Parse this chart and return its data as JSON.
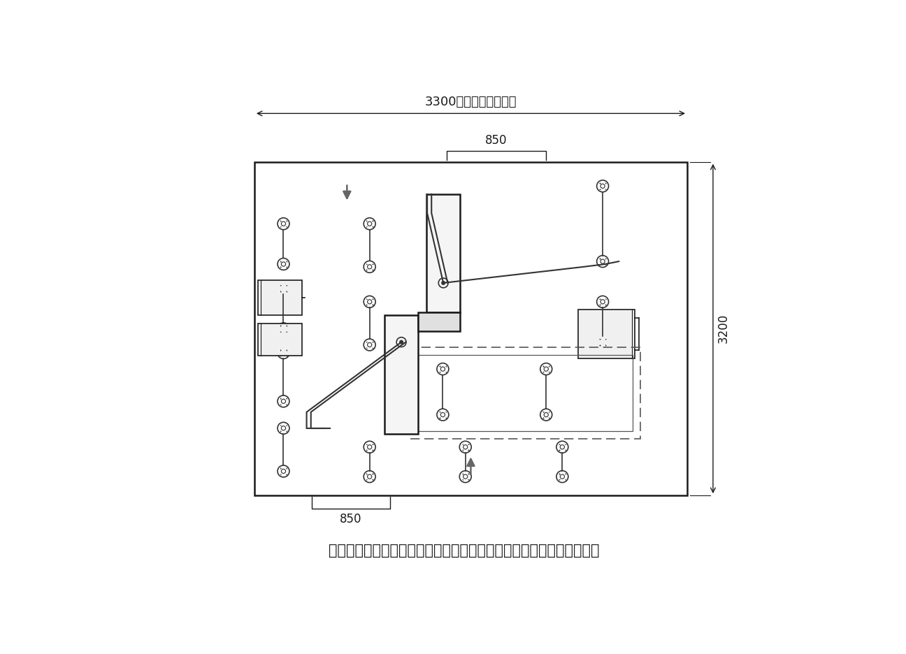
{
  "bottom_text": "製品図面データご希望の方は下記お問合せフォームよりご連絡下さい",
  "dim_top": "3300（土間コン範囲）",
  "dim_right": "3200",
  "dim_850_top": "850",
  "dim_850_bottom": "850",
  "bg_color": "#ffffff",
  "lc": "#1a1a1a",
  "pole_color": "#333333",
  "fig_width": 12.96,
  "fig_height": 9.36,
  "mx0": 258,
  "my0_t": 155,
  "mx1": 1062,
  "my1_t": 775
}
